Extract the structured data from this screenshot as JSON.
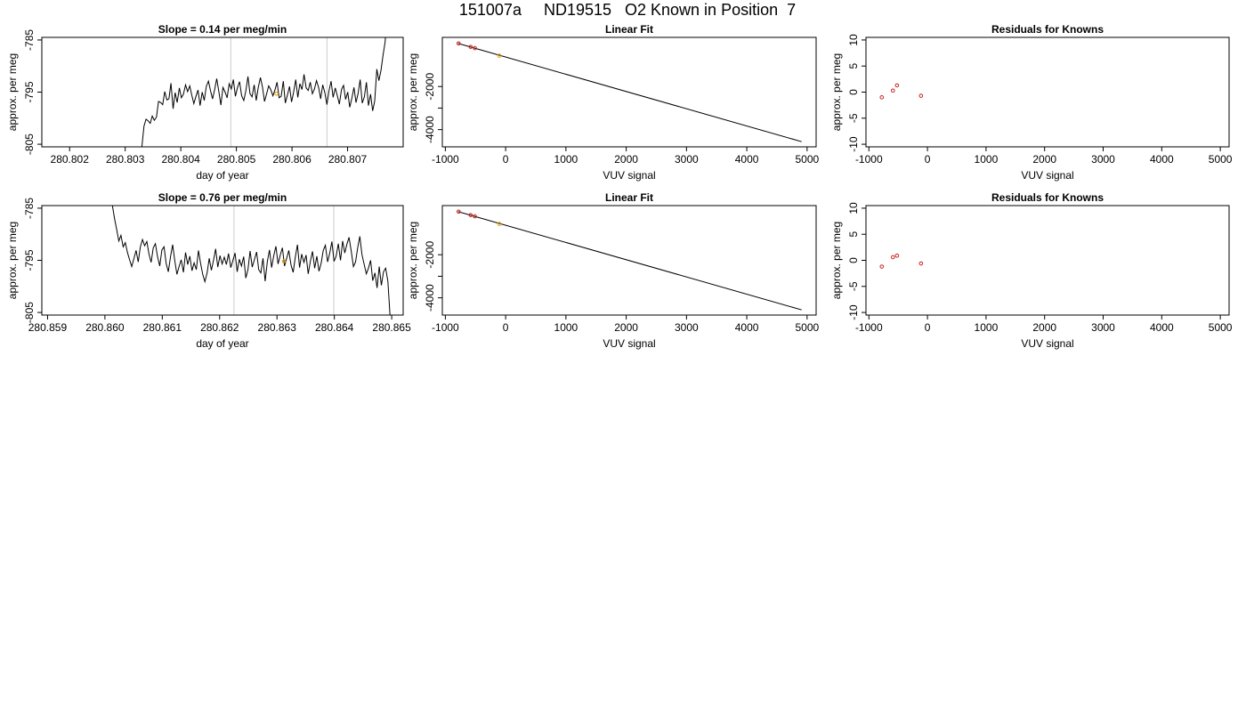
{
  "page_title": "151007a     ND19515   O2 Known in Position  7",
  "chart_data": [
    {
      "type": "line",
      "title": "Slope =  0.14  per meg/min",
      "xlabel": "day of year",
      "ylabel": "approx. per meg",
      "xlim": [
        280.8015,
        280.808
      ],
      "ylim": [
        -805.5,
        -784.5
      ],
      "xticks": [
        280.802,
        280.803,
        280.804,
        280.805,
        280.806,
        280.807
      ],
      "xtick_labels": [
        "280.802",
        "280.803",
        "280.804",
        "280.805",
        "280.806",
        "280.807"
      ],
      "yticks": [
        -785,
        -795,
        -805
      ],
      "ytick_labels": [
        "-785",
        "-795",
        "-805"
      ],
      "vlines": [
        280.8049,
        280.80663
      ],
      "line_start": 280.8033,
      "line_end": 280.80775,
      "series_y": [
        -805.5,
        -801.5,
        -800.2,
        -800.5,
        -801.0,
        -799.6,
        -800.4,
        -799.8,
        -796.8,
        -797.0,
        -797.4,
        -794.9,
        -796.5,
        -796.3,
        -793.3,
        -798.2,
        -795.1,
        -797.0,
        -794.2,
        -796.1,
        -795.4,
        -793.6,
        -794.9,
        -793.8,
        -795.6,
        -797.2,
        -795.8,
        -794.6,
        -797.6,
        -795.0,
        -796.6,
        -793.9,
        -792.9,
        -794.7,
        -796.3,
        -794.5,
        -792.4,
        -794.9,
        -797.5,
        -794.1,
        -795.0,
        -796.1,
        -793.4,
        -794.4,
        -792.6,
        -795.8,
        -794.1,
        -793.0,
        -795.7,
        -796.6,
        -794.8,
        -792.0,
        -795.3,
        -795.9,
        -793.6,
        -796.6,
        -794.1,
        -792.2,
        -794.0,
        -796.8,
        -795.3,
        -793.8,
        -794.5,
        -795.7,
        -794.6,
        -793.1,
        -796.1,
        -795.8,
        -792.9,
        -797.1,
        -795.6,
        -793.9,
        -796.9,
        -795.0,
        -792.6,
        -796.0,
        -793.4,
        -794.5,
        -791.6,
        -794.2,
        -794.7,
        -793.1,
        -795.3,
        -794.4,
        -792.8,
        -794.1,
        -796.3,
        -793.6,
        -795.1,
        -797.4,
        -794.8,
        -792.9,
        -796.0,
        -794.2,
        -795.7,
        -797.3,
        -794.5,
        -793.7,
        -796.4,
        -795.0,
        -797.9,
        -796.2,
        -794.1,
        -797.0,
        -795.3,
        -792.6,
        -797.1,
        -795.9,
        -793.1,
        -797.6,
        -795.4,
        -798.6,
        -796.7,
        -790.6,
        -792.8,
        -790.9,
        -787.9,
        -785.4,
        -780.0,
        -776.0
      ],
      "points": [
        {
          "x": 280.80572,
          "y": -795.3,
          "color": "#e69f00"
        }
      ]
    },
    {
      "type": "scatter",
      "title": "Linear Fit",
      "xlabel": "VUV signal",
      "ylabel": "approx. per meg",
      "xlim": [
        -1050,
        5150
      ],
      "ylim": [
        -4800,
        280
      ],
      "xticks": [
        -1000,
        0,
        1000,
        2000,
        3000,
        4000,
        5000
      ],
      "xtick_labels": [
        "-1000",
        "0",
        "1000",
        "2000",
        "3000",
        "4000",
        "5000"
      ],
      "yticks": [
        -2000,
        -3000,
        -4000
      ],
      "ytick_labels": [
        "-2000",
        "",
        "-4000"
      ],
      "fit_line": [
        [
          -790,
          0
        ],
        [
          4910,
          -4560
        ]
      ],
      "points": [
        {
          "x": -780,
          "y": 0,
          "color": "#cc2020"
        },
        {
          "x": -580,
          "y": -160,
          "color": "#cc2020"
        },
        {
          "x": -510,
          "y": -220,
          "color": "#cc2020"
        },
        {
          "x": -105,
          "y": -570,
          "color": "#e69f00"
        }
      ]
    },
    {
      "type": "scatter",
      "title": "Residuals for Knowns",
      "xlabel": "VUV signal",
      "ylabel": "approx. per meg",
      "xlim": [
        -1050,
        5150
      ],
      "ylim": [
        -10.5,
        10.5
      ],
      "xticks": [
        -1000,
        0,
        1000,
        2000,
        3000,
        4000,
        5000
      ],
      "xtick_labels": [
        "-1000",
        "0",
        "1000",
        "2000",
        "3000",
        "4000",
        "5000"
      ],
      "yticks": [
        10,
        5,
        0,
        -5,
        -10
      ],
      "ytick_labels": [
        "10",
        "5",
        "0",
        "-5",
        "-10"
      ],
      "points": [
        {
          "x": -780,
          "y": -1.0,
          "color": "#cc2020"
        },
        {
          "x": -590,
          "y": 0.3,
          "color": "#cc2020"
        },
        {
          "x": -520,
          "y": 1.3,
          "color": "#cc2020"
        },
        {
          "x": -110,
          "y": -0.7,
          "color": "#cc2020"
        }
      ]
    },
    {
      "type": "line",
      "title": "Slope =  0.76  per meg/min",
      "xlabel": "day of year",
      "ylabel": "approx. per meg",
      "xlim": [
        280.8589,
        280.8652
      ],
      "ylim": [
        -805.5,
        -784.5
      ],
      "xticks": [
        280.859,
        280.86,
        280.861,
        280.862,
        280.863,
        280.864,
        280.865
      ],
      "xtick_labels": [
        "280.859",
        "280.860",
        "280.861",
        "280.862",
        "280.863",
        "280.864",
        "280.865"
      ],
      "yticks": [
        -785,
        -795,
        -805
      ],
      "ytick_labels": [
        "-785",
        "-795",
        "-805"
      ],
      "vlines": [
        280.86225,
        280.86399
      ],
      "line_start": 280.86013,
      "line_end": 280.86497,
      "series_y": [
        -784.5,
        -787.0,
        -789.1,
        -791.3,
        -790.2,
        -792.4,
        -791.6,
        -793.5,
        -794.9,
        -796.2,
        -794.7,
        -793.1,
        -795.3,
        -792.4,
        -791.0,
        -792.2,
        -791.4,
        -793.8,
        -795.4,
        -792.6,
        -791.8,
        -794.3,
        -796.1,
        -793.0,
        -792.4,
        -795.6,
        -797.2,
        -794.3,
        -792.0,
        -795.1,
        -797.7,
        -796.2,
        -794.9,
        -797.3,
        -793.5,
        -795.8,
        -794.2,
        -797.0,
        -795.5,
        -796.8,
        -793.1,
        -795.6,
        -797.7,
        -799.1,
        -797.4,
        -794.6,
        -796.9,
        -795.0,
        -792.8,
        -796.3,
        -794.1,
        -795.7,
        -794.4,
        -795.8,
        -793.7,
        -796.4,
        -795.0,
        -793.6,
        -797.2,
        -794.8,
        -796.1,
        -794.3,
        -798.4,
        -796.8,
        -793.2,
        -796.3,
        -794.9,
        -793.4,
        -796.8,
        -797.4,
        -794.6,
        -799.0,
        -795.2,
        -793.0,
        -796.4,
        -794.1,
        -792.3,
        -795.7,
        -794.0,
        -792.6,
        -796.1,
        -794.6,
        -793.1,
        -795.9,
        -797.3,
        -794.4,
        -792.0,
        -796.4,
        -793.8,
        -795.4,
        -794.0,
        -797.6,
        -795.2,
        -793.3,
        -796.5,
        -794.2,
        -797.1,
        -795.6,
        -793.1,
        -792.1,
        -795.3,
        -793.6,
        -791.4,
        -795.2,
        -794.2,
        -791.8,
        -795.0,
        -791.3,
        -793.6,
        -791.9,
        -790.6,
        -793.3,
        -796.2,
        -795.3,
        -792.6,
        -790.4,
        -793.9,
        -795.8,
        -797.6,
        -796.5,
        -795.0,
        -798.9,
        -797.4,
        -800.3,
        -796.2,
        -799.8,
        -797.2,
        -796.5,
        -799.0,
        -805.5
      ],
      "points": [
        {
          "x": 280.86312,
          "y": -795.2,
          "color": "#e69f00"
        }
      ]
    },
    {
      "type": "scatter",
      "title": "Linear Fit",
      "xlabel": "VUV signal",
      "ylabel": "approx. per meg",
      "xlim": [
        -1050,
        5150
      ],
      "ylim": [
        -4800,
        280
      ],
      "xticks": [
        -1000,
        0,
        1000,
        2000,
        3000,
        4000,
        5000
      ],
      "xtick_labels": [
        "-1000",
        "0",
        "1000",
        "2000",
        "3000",
        "4000",
        "5000"
      ],
      "yticks": [
        -2000,
        -3000,
        -4000
      ],
      "ytick_labels": [
        "-2000",
        "",
        "-4000"
      ],
      "fit_line": [
        [
          -790,
          0
        ],
        [
          4910,
          -4560
        ]
      ],
      "points": [
        {
          "x": -780,
          "y": 0,
          "color": "#cc2020"
        },
        {
          "x": -580,
          "y": -160,
          "color": "#cc2020"
        },
        {
          "x": -510,
          "y": -220,
          "color": "#cc2020"
        },
        {
          "x": -105,
          "y": -570,
          "color": "#e69f00"
        }
      ]
    },
    {
      "type": "scatter",
      "title": "Residuals for Knowns",
      "xlabel": "VUV signal",
      "ylabel": "approx. per meg",
      "xlim": [
        -1050,
        5150
      ],
      "ylim": [
        -10.5,
        10.5
      ],
      "xticks": [
        -1000,
        0,
        1000,
        2000,
        3000,
        4000,
        5000
      ],
      "xtick_labels": [
        "-1000",
        "0",
        "1000",
        "2000",
        "3000",
        "4000",
        "5000"
      ],
      "yticks": [
        10,
        5,
        0,
        -5,
        -10
      ],
      "ytick_labels": [
        "10",
        "5",
        "0",
        "-5",
        "-10"
      ],
      "points": [
        {
          "x": -780,
          "y": -1.2,
          "color": "#cc2020"
        },
        {
          "x": -590,
          "y": 0.6,
          "color": "#cc2020"
        },
        {
          "x": -520,
          "y": 0.9,
          "color": "#cc2020"
        },
        {
          "x": -110,
          "y": -0.6,
          "color": "#cc2020"
        }
      ]
    }
  ]
}
